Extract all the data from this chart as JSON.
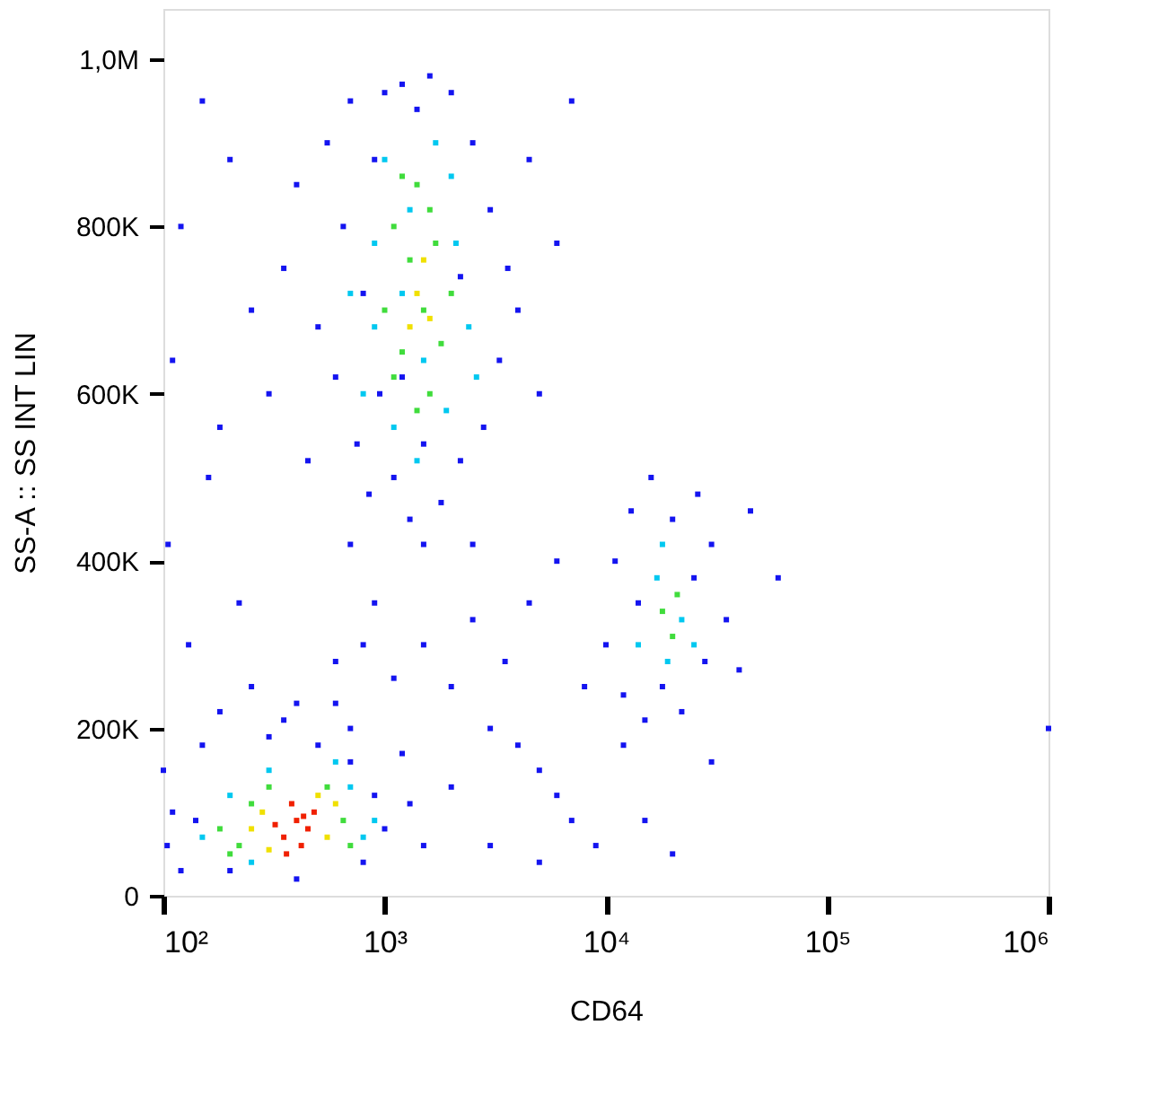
{
  "chart_data": {
    "type": "scatter",
    "xlabel": "CD64",
    "ylabel": "SS-A :: SS INT LIN",
    "log": "x",
    "xlim": [
      100,
      1000000
    ],
    "ylim": [
      0,
      1060000
    ],
    "xticks": [
      {
        "value": 100,
        "label": "10²"
      },
      {
        "value": 1000,
        "label": "10³"
      },
      {
        "value": 10000,
        "label": "10⁴"
      },
      {
        "value": 100000,
        "label": "10⁵"
      },
      {
        "value": 1000000,
        "label": "10⁶"
      }
    ],
    "yticks": [
      0,
      {
        "value": 200000,
        "label": "200K"
      },
      {
        "value": 400000,
        "label": "400K"
      },
      {
        "value": 600000,
        "label": "600K"
      },
      {
        "value": 800000,
        "label": "800K"
      },
      {
        "value": 1000000,
        "label": "1,0M"
      }
    ],
    "grid": false,
    "legend": false,
    "marker": "square",
    "series": [
      {
        "color": "#1414f0",
        "x": [
          300,
          350,
          400,
          450,
          500,
          550,
          600,
          650,
          700,
          750,
          800,
          850,
          900,
          950,
          1000,
          1100,
          1200,
          1300,
          1400,
          1600,
          1800,
          2000,
          2200,
          2500,
          2800,
          3000,
          3300,
          3600,
          4000,
          4500,
          5000,
          6000,
          7000,
          250,
          200,
          180,
          150,
          120,
          110,
          105,
          130,
          160,
          220,
          1200,
          1500,
          2200,
          700,
          900,
          1500,
          2500,
          1500,
          2000,
          3000,
          4000,
          5000,
          6000,
          7000,
          2500,
          3500,
          8000,
          4500,
          6000,
          1100,
          800,
          600,
          5000,
          9000,
          12000,
          15000,
          30000,
          60000,
          45000,
          20000,
          3000,
          2000,
          1000000,
          10000,
          11000,
          12000,
          13000,
          15000,
          16000,
          18000,
          20000,
          22000,
          25000,
          28000,
          30000,
          35000,
          40000,
          14000,
          26000,
          104,
          100,
          120,
          150,
          180,
          200,
          250,
          300,
          350,
          400,
          500,
          600,
          700,
          800,
          900,
          1000,
          1200,
          1500,
          110,
          140,
          700,
          400,
          1300
        ],
        "values": [
          600000,
          750000,
          850000,
          520000,
          680000,
          900000,
          620000,
          800000,
          950000,
          540000,
          720000,
          480000,
          880000,
          600000,
          960000,
          500000,
          970000,
          450000,
          940000,
          980000,
          470000,
          960000,
          520000,
          900000,
          560000,
          820000,
          640000,
          750000,
          700000,
          880000,
          600000,
          780000,
          950000,
          700000,
          880000,
          560000,
          950000,
          800000,
          640000,
          420000,
          300000,
          500000,
          350000,
          620000,
          540000,
          740000,
          420000,
          350000,
          420000,
          420000,
          300000,
          250000,
          200000,
          180000,
          150000,
          120000,
          90000,
          330000,
          280000,
          250000,
          350000,
          400000,
          260000,
          300000,
          280000,
          40000,
          60000,
          180000,
          90000,
          160000,
          380000,
          460000,
          50000,
          60000,
          130000,
          200000,
          300000,
          400000,
          240000,
          460000,
          210000,
          500000,
          250000,
          450000,
          220000,
          380000,
          280000,
          420000,
          330000,
          270000,
          350000,
          480000,
          60000,
          150000,
          30000,
          180000,
          220000,
          30000,
          250000,
          190000,
          210000,
          20000,
          180000,
          230000,
          160000,
          40000,
          120000,
          80000,
          170000,
          60000,
          100000,
          90000,
          200000,
          230000,
          110000
        ]
      },
      {
        "color": "#00c8f0",
        "x": [
          800,
          900,
          1000,
          1100,
          1200,
          1300,
          1500,
          1700,
          1900,
          2100,
          2400,
          2600,
          900,
          1400,
          2000,
          700,
          14000,
          17000,
          19000,
          22000,
          25000,
          18000,
          150,
          200,
          250,
          300,
          700,
          800,
          900,
          600
        ],
        "values": [
          600000,
          780000,
          880000,
          560000,
          720000,
          820000,
          640000,
          900000,
          580000,
          780000,
          680000,
          620000,
          680000,
          520000,
          860000,
          720000,
          300000,
          380000,
          280000,
          330000,
          300000,
          420000,
          70000,
          120000,
          40000,
          150000,
          130000,
          70000,
          90000,
          160000
        ]
      },
      {
        "color": "#40dc3c",
        "x": [
          1000,
          1100,
          1200,
          1300,
          1400,
          1500,
          1600,
          1700,
          1800,
          1400,
          1200,
          2000,
          1100,
          1600,
          18000,
          21000,
          20000,
          180,
          220,
          250,
          650,
          700,
          300,
          550,
          200
        ],
        "values": [
          700000,
          800000,
          650000,
          760000,
          850000,
          700000,
          600000,
          780000,
          660000,
          580000,
          860000,
          720000,
          620000,
          820000,
          340000,
          360000,
          310000,
          80000,
          60000,
          110000,
          90000,
          60000,
          130000,
          130000,
          50000
        ]
      },
      {
        "color": "#f0e000",
        "x": [
          1400,
          1500,
          1300,
          1600,
          250,
          280,
          550,
          600,
          300,
          500
        ],
        "values": [
          720000,
          760000,
          680000,
          690000,
          80000,
          100000,
          70000,
          110000,
          55000,
          120000
        ]
      },
      {
        "color": "#f02000",
        "x": [
          350,
          400,
          420,
          450,
          380,
          480,
          360,
          430,
          320
        ],
        "values": [
          70000,
          90000,
          60000,
          80000,
          110000,
          100000,
          50000,
          95000,
          85000
        ]
      }
    ]
  }
}
